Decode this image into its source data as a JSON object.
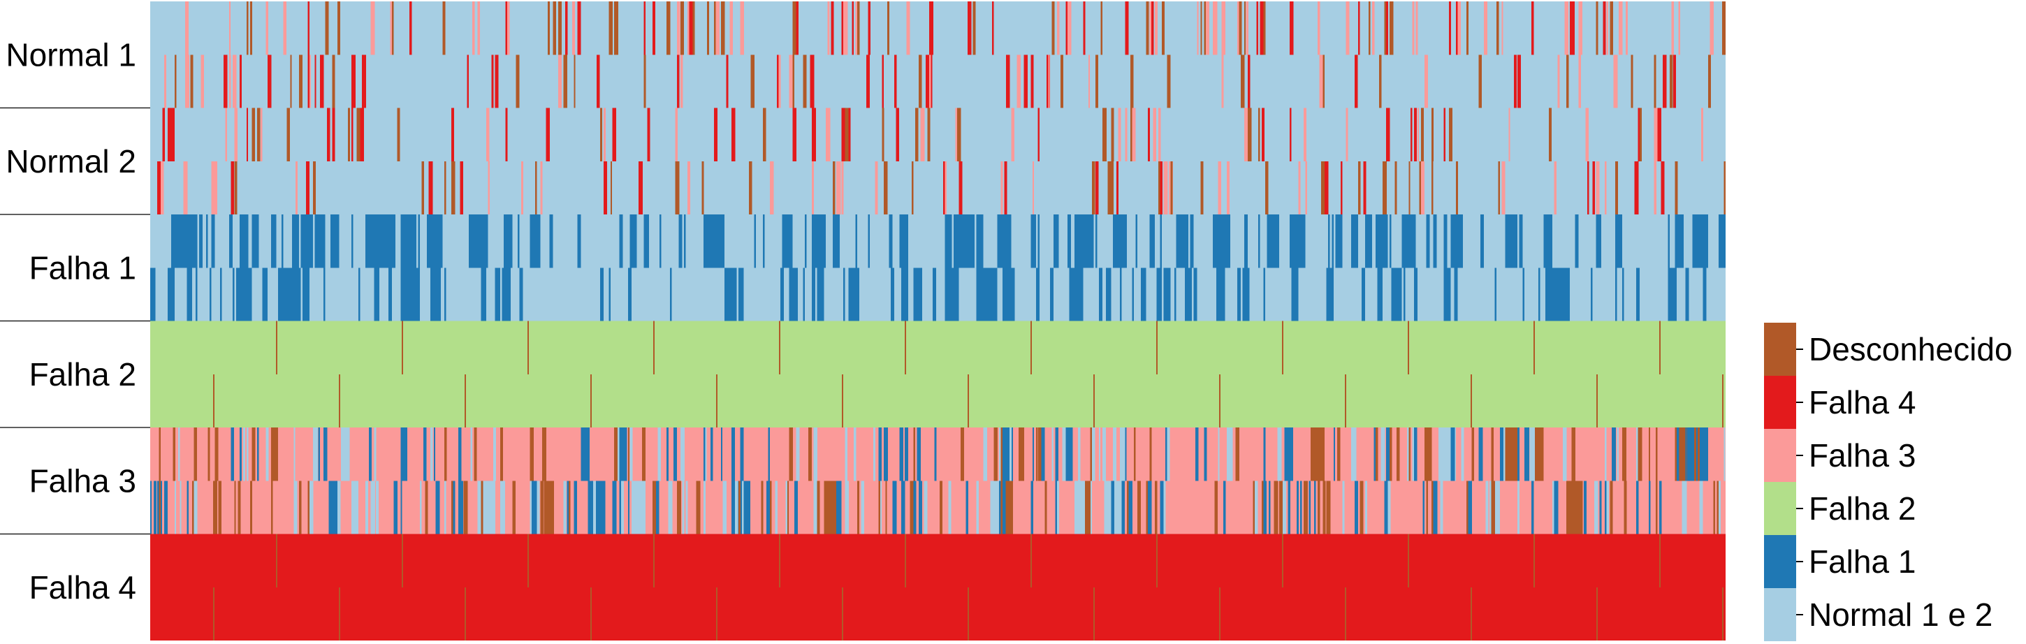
{
  "chart_data": {
    "type": "heatmap",
    "title": "",
    "xlabel": "",
    "ylabel": "",
    "grid": false,
    "legend_position": "right-bottom",
    "rows": [
      {
        "label": "Normal 1",
        "base_class": "Normal 1 e 2"
      },
      {
        "label": "Normal 2",
        "base_class": "Normal 1 e 2"
      },
      {
        "label": "Falha 1",
        "base_class": "Falha 1"
      },
      {
        "label": "Falha 2",
        "base_class": "Falha 2"
      },
      {
        "label": "Falha 3",
        "base_class": "Falha 3"
      },
      {
        "label": "Falha 4",
        "base_class": "Falha 4"
      }
    ],
    "legend": [
      {
        "label": "Desconhecido",
        "color": "#b15928"
      },
      {
        "label": "Falha 4",
        "color": "#e31a1c"
      },
      {
        "label": "Falha 3",
        "color": "#fb9a99"
      },
      {
        "label": "Falha 2",
        "color": "#b2df8a"
      },
      {
        "label": "Falha 1",
        "color": "#1f78b4"
      },
      {
        "label": "Normal 1 e 2",
        "color": "#a6cee3"
      }
    ],
    "sub_row_disturbances": [
      {
        "row": "Normal 1",
        "sub": 0,
        "pattern": "sparse",
        "colors": [
          "#b15928",
          "#fb9a99",
          "#e31a1c"
        ],
        "density": 0.12
      },
      {
        "row": "Normal 1",
        "sub": 1,
        "pattern": "sparse",
        "colors": [
          "#b15928",
          "#fb9a99",
          "#e31a1c"
        ],
        "density": 0.08
      },
      {
        "row": "Normal 2",
        "sub": 0,
        "pattern": "sparse",
        "colors": [
          "#b15928",
          "#fb9a99",
          "#e31a1c"
        ],
        "density": 0.09
      },
      {
        "row": "Normal 2",
        "sub": 1,
        "pattern": "sparse",
        "colors": [
          "#b15928",
          "#fb9a99",
          "#e31a1c"
        ],
        "density": 0.08
      },
      {
        "row": "Falha 1",
        "sub": 0,
        "pattern": "dense",
        "colors": [
          "#a6cee3"
        ],
        "density": 0.22
      },
      {
        "row": "Falha 1",
        "sub": 1,
        "pattern": "dense",
        "colors": [
          "#a6cee3"
        ],
        "density": 0.28
      },
      {
        "row": "Falha 2",
        "sub": 0,
        "pattern": "regular",
        "colors": [
          "#b15928"
        ],
        "density": 0.0
      },
      {
        "row": "Falha 2",
        "sub": 1,
        "pattern": "regular",
        "colors": [
          "#b15928"
        ],
        "density": 0.0
      },
      {
        "row": "Falha 3",
        "sub": 0,
        "pattern": "mixed",
        "colors": [
          "#b15928",
          "#a6cee3",
          "#1f78b4"
        ],
        "density": 0.2
      },
      {
        "row": "Falha 3",
        "sub": 1,
        "pattern": "mixed",
        "colors": [
          "#b15928",
          "#a6cee3",
          "#1f78b4"
        ],
        "density": 0.2
      },
      {
        "row": "Falha 4",
        "sub": 0,
        "pattern": "regular",
        "colors": [
          "#b15928"
        ],
        "density": 0.0
      },
      {
        "row": "Falha 4",
        "sub": 1,
        "pattern": "regular",
        "colors": [
          "#b15928"
        ],
        "density": 0.0
      }
    ]
  }
}
